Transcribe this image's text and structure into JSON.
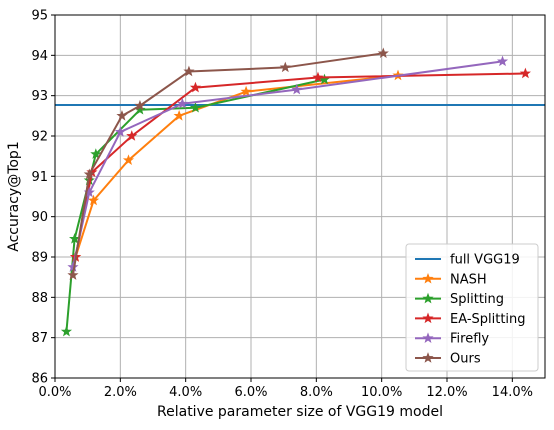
{
  "chart_data": {
    "type": "line",
    "title": "",
    "xlabel": "Relative parameter size of VGG19 model",
    "ylabel": "Accuracy@Top1",
    "xlim": [
      0,
      0.15
    ],
    "ylim": [
      86,
      95
    ],
    "x_ticks": [
      0,
      0.02,
      0.04,
      0.06,
      0.08,
      0.1,
      0.12,
      0.14
    ],
    "x_tick_labels": [
      "0.0%",
      "2.0%",
      "4.0%",
      "6.0%",
      "8.0%",
      "10.0%",
      "12.0%",
      "14.0%"
    ],
    "y_ticks": [
      86,
      87,
      88,
      89,
      90,
      91,
      92,
      93,
      94,
      95
    ],
    "y_tick_labels": [
      "86",
      "87",
      "88",
      "89",
      "90",
      "91",
      "92",
      "93",
      "94",
      "95"
    ],
    "grid": true,
    "legend_position": "lower-right",
    "reference_lines": [
      {
        "name": "full VGG19",
        "y": 92.77,
        "color": "#1f77b4"
      }
    ],
    "series": [
      {
        "name": "NASH",
        "color": "#ff7f0e",
        "x": [
          0.0063,
          0.0118,
          0.0225,
          0.038,
          0.0585,
          0.105
        ],
        "y": [
          89.0,
          90.4,
          91.4,
          92.5,
          93.1,
          93.5
        ]
      },
      {
        "name": "Splitting",
        "color": "#2ca02c",
        "x": [
          0.0035,
          0.006,
          0.0105,
          0.0125,
          0.026,
          0.043,
          0.0825
        ],
        "y": [
          87.15,
          89.45,
          90.9,
          91.55,
          92.65,
          92.7,
          93.4
        ]
      },
      {
        "name": "EA-Splitting",
        "color": "#d62728",
        "x": [
          0.0063,
          0.0113,
          0.0235,
          0.043,
          0.0805,
          0.144
        ],
        "y": [
          89.0,
          91.1,
          92.0,
          93.2,
          93.45,
          93.55
        ]
      },
      {
        "name": "Firefly",
        "color": "#9467bd",
        "x": [
          0.0055,
          0.0105,
          0.02,
          0.039,
          0.074,
          0.137
        ],
        "y": [
          88.75,
          90.6,
          92.1,
          92.8,
          93.15,
          93.85
        ]
      },
      {
        "name": "Ours",
        "color": "#8c564b",
        "x": [
          0.0055,
          0.0105,
          0.0205,
          0.026,
          0.041,
          0.0705,
          0.1005
        ],
        "y": [
          88.55,
          91.05,
          92.5,
          92.75,
          93.6,
          93.7,
          94.05
        ]
      }
    ]
  }
}
